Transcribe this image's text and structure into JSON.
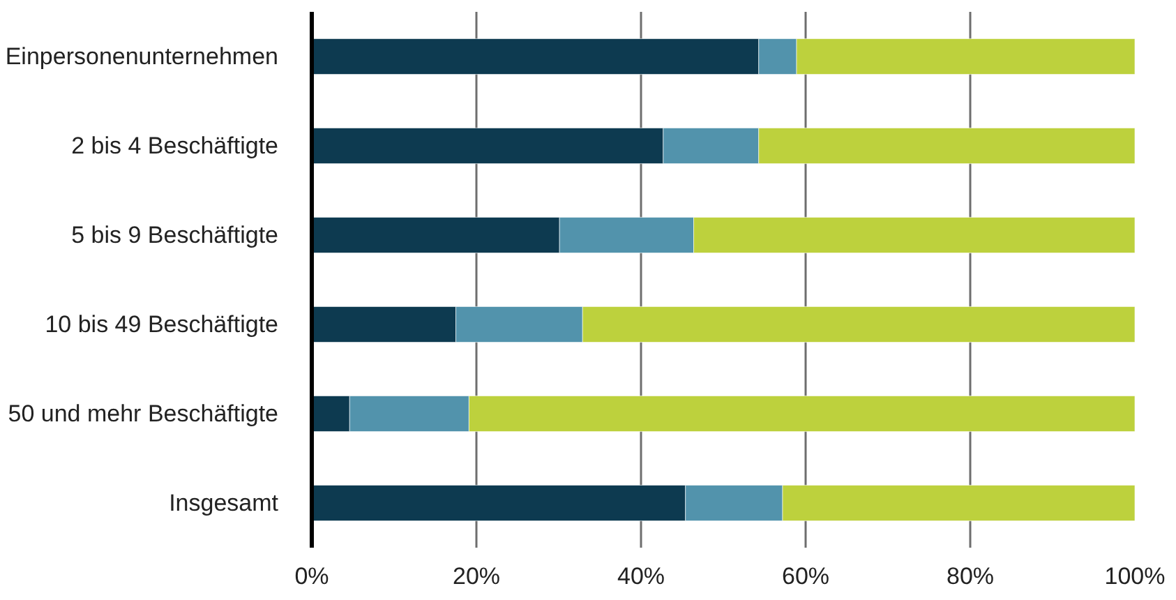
{
  "chart_data": {
    "type": "bar",
    "orientation": "horizontal",
    "stacked": true,
    "categories": [
      "Einpersonenunternehmen",
      "2 bis 4 Beschäftigte",
      "5 bis 9 Beschäftigte",
      "10 bis 49 Beschäftigte",
      "50 und mehr Beschäftigte",
      "Insgesamt"
    ],
    "series": [
      {
        "color": "#0d3a50",
        "values": [
          54.3,
          42.7,
          30.1,
          17.5,
          4.6,
          45.4
        ]
      },
      {
        "color": "#5293ac",
        "values": [
          4.6,
          11.6,
          16.3,
          15.4,
          14.5,
          11.8
        ]
      },
      {
        "color": "#bdd13d",
        "values": [
          41.1,
          45.7,
          53.6,
          67.1,
          80.9,
          42.8
        ]
      }
    ],
    "xlim": [
      0,
      100
    ],
    "xticks": [
      {
        "value": 0,
        "label": "0%"
      },
      {
        "value": 20,
        "label": "20%"
      },
      {
        "value": 40,
        "label": "40%"
      },
      {
        "value": 60,
        "label": "60%"
      },
      {
        "value": 80,
        "label": "80%"
      },
      {
        "value": 100,
        "label": "100%"
      }
    ],
    "grid": "x"
  }
}
